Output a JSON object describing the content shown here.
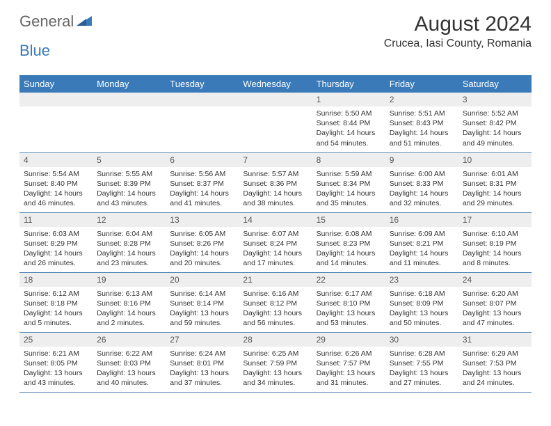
{
  "logo": {
    "general": "General",
    "blue": "Blue"
  },
  "title": "August 2024",
  "location": "Crucea, Iasi County, Romania",
  "colors": {
    "header_bg": "#3a7ab8",
    "header_fg": "#ffffff",
    "daynum_bg": "#eeeeee",
    "row_border": "#5a8aba",
    "text": "#333333",
    "logo_gray": "#666666",
    "logo_blue": "#3a7ab8"
  },
  "weekdays": [
    "Sunday",
    "Monday",
    "Tuesday",
    "Wednesday",
    "Thursday",
    "Friday",
    "Saturday"
  ],
  "weeks": [
    [
      null,
      null,
      null,
      null,
      {
        "n": "1",
        "sr": "5:50 AM",
        "ss": "8:44 PM",
        "dl1": "Daylight: 14 hours",
        "dl2": "and 54 minutes."
      },
      {
        "n": "2",
        "sr": "5:51 AM",
        "ss": "8:43 PM",
        "dl1": "Daylight: 14 hours",
        "dl2": "and 51 minutes."
      },
      {
        "n": "3",
        "sr": "5:52 AM",
        "ss": "8:42 PM",
        "dl1": "Daylight: 14 hours",
        "dl2": "and 49 minutes."
      }
    ],
    [
      {
        "n": "4",
        "sr": "5:54 AM",
        "ss": "8:40 PM",
        "dl1": "Daylight: 14 hours",
        "dl2": "and 46 minutes."
      },
      {
        "n": "5",
        "sr": "5:55 AM",
        "ss": "8:39 PM",
        "dl1": "Daylight: 14 hours",
        "dl2": "and 43 minutes."
      },
      {
        "n": "6",
        "sr": "5:56 AM",
        "ss": "8:37 PM",
        "dl1": "Daylight: 14 hours",
        "dl2": "and 41 minutes."
      },
      {
        "n": "7",
        "sr": "5:57 AM",
        "ss": "8:36 PM",
        "dl1": "Daylight: 14 hours",
        "dl2": "and 38 minutes."
      },
      {
        "n": "8",
        "sr": "5:59 AM",
        "ss": "8:34 PM",
        "dl1": "Daylight: 14 hours",
        "dl2": "and 35 minutes."
      },
      {
        "n": "9",
        "sr": "6:00 AM",
        "ss": "8:33 PM",
        "dl1": "Daylight: 14 hours",
        "dl2": "and 32 minutes."
      },
      {
        "n": "10",
        "sr": "6:01 AM",
        "ss": "8:31 PM",
        "dl1": "Daylight: 14 hours",
        "dl2": "and 29 minutes."
      }
    ],
    [
      {
        "n": "11",
        "sr": "6:03 AM",
        "ss": "8:29 PM",
        "dl1": "Daylight: 14 hours",
        "dl2": "and 26 minutes."
      },
      {
        "n": "12",
        "sr": "6:04 AM",
        "ss": "8:28 PM",
        "dl1": "Daylight: 14 hours",
        "dl2": "and 23 minutes."
      },
      {
        "n": "13",
        "sr": "6:05 AM",
        "ss": "8:26 PM",
        "dl1": "Daylight: 14 hours",
        "dl2": "and 20 minutes."
      },
      {
        "n": "14",
        "sr": "6:07 AM",
        "ss": "8:24 PM",
        "dl1": "Daylight: 14 hours",
        "dl2": "and 17 minutes."
      },
      {
        "n": "15",
        "sr": "6:08 AM",
        "ss": "8:23 PM",
        "dl1": "Daylight: 14 hours",
        "dl2": "and 14 minutes."
      },
      {
        "n": "16",
        "sr": "6:09 AM",
        "ss": "8:21 PM",
        "dl1": "Daylight: 14 hours",
        "dl2": "and 11 minutes."
      },
      {
        "n": "17",
        "sr": "6:10 AM",
        "ss": "8:19 PM",
        "dl1": "Daylight: 14 hours",
        "dl2": "and 8 minutes."
      }
    ],
    [
      {
        "n": "18",
        "sr": "6:12 AM",
        "ss": "8:18 PM",
        "dl1": "Daylight: 14 hours",
        "dl2": "and 5 minutes."
      },
      {
        "n": "19",
        "sr": "6:13 AM",
        "ss": "8:16 PM",
        "dl1": "Daylight: 14 hours",
        "dl2": "and 2 minutes."
      },
      {
        "n": "20",
        "sr": "6:14 AM",
        "ss": "8:14 PM",
        "dl1": "Daylight: 13 hours",
        "dl2": "and 59 minutes."
      },
      {
        "n": "21",
        "sr": "6:16 AM",
        "ss": "8:12 PM",
        "dl1": "Daylight: 13 hours",
        "dl2": "and 56 minutes."
      },
      {
        "n": "22",
        "sr": "6:17 AM",
        "ss": "8:10 PM",
        "dl1": "Daylight: 13 hours",
        "dl2": "and 53 minutes."
      },
      {
        "n": "23",
        "sr": "6:18 AM",
        "ss": "8:09 PM",
        "dl1": "Daylight: 13 hours",
        "dl2": "and 50 minutes."
      },
      {
        "n": "24",
        "sr": "6:20 AM",
        "ss": "8:07 PM",
        "dl1": "Daylight: 13 hours",
        "dl2": "and 47 minutes."
      }
    ],
    [
      {
        "n": "25",
        "sr": "6:21 AM",
        "ss": "8:05 PM",
        "dl1": "Daylight: 13 hours",
        "dl2": "and 43 minutes."
      },
      {
        "n": "26",
        "sr": "6:22 AM",
        "ss": "8:03 PM",
        "dl1": "Daylight: 13 hours",
        "dl2": "and 40 minutes."
      },
      {
        "n": "27",
        "sr": "6:24 AM",
        "ss": "8:01 PM",
        "dl1": "Daylight: 13 hours",
        "dl2": "and 37 minutes."
      },
      {
        "n": "28",
        "sr": "6:25 AM",
        "ss": "7:59 PM",
        "dl1": "Daylight: 13 hours",
        "dl2": "and 34 minutes."
      },
      {
        "n": "29",
        "sr": "6:26 AM",
        "ss": "7:57 PM",
        "dl1": "Daylight: 13 hours",
        "dl2": "and 31 minutes."
      },
      {
        "n": "30",
        "sr": "6:28 AM",
        "ss": "7:55 PM",
        "dl1": "Daylight: 13 hours",
        "dl2": "and 27 minutes."
      },
      {
        "n": "31",
        "sr": "6:29 AM",
        "ss": "7:53 PM",
        "dl1": "Daylight: 13 hours",
        "dl2": "and 24 minutes."
      }
    ]
  ]
}
